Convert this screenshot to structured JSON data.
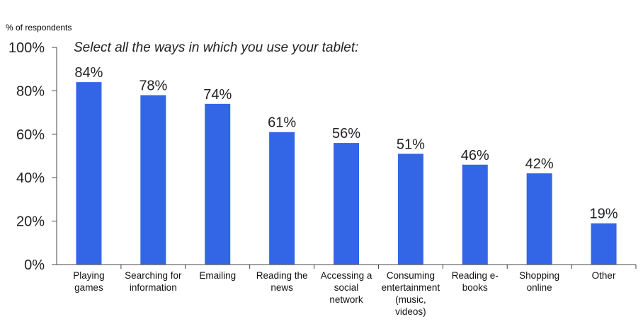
{
  "chart_data": {
    "type": "bar",
    "title": "Select all the ways in which you use your tablet:",
    "ylabel": "% of respondents",
    "xlabel": "",
    "ylim": [
      0,
      100
    ],
    "yticks": [
      "0%",
      "20%",
      "40%",
      "60%",
      "80%",
      "100%"
    ],
    "categories": [
      [
        "Playing",
        "games"
      ],
      [
        "Searching for",
        "information"
      ],
      [
        "Emailing"
      ],
      [
        "Reading the",
        "news"
      ],
      [
        "Accessing a",
        "social",
        "network"
      ],
      [
        "Consuming",
        "entertainment",
        "(music,",
        "videos)"
      ],
      [
        "Reading e-",
        "books"
      ],
      [
        "Shopping",
        "online"
      ],
      [
        "Other"
      ]
    ],
    "values": [
      84,
      78,
      74,
      61,
      56,
      51,
      46,
      42,
      19
    ],
    "value_labels": [
      "84%",
      "78%",
      "74%",
      "61%",
      "56%",
      "51%",
      "46%",
      "42%",
      "19%"
    ],
    "bar_color": "#3366e6",
    "grid": false,
    "legend": "none"
  }
}
